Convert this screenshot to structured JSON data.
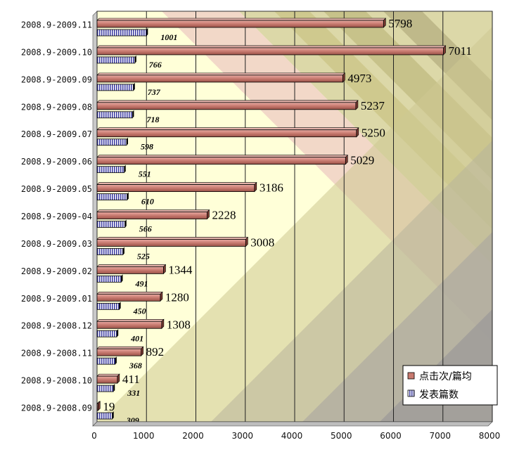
{
  "chart_data": {
    "type": "bar",
    "orientation": "horizontal",
    "categories": [
      "2008.9-2009.11",
      "2008.9-2009.10",
      "2008.9-2009.09",
      "2008.9-2009.08",
      "2008.9-2009.07",
      "2008.9-2009.06",
      "2008.9-2009.05",
      "2008.9-2009-04",
      "2008.9-2009.03",
      "2008.9-2009.02",
      "2008.9-2009.01",
      "2008.9-2008.12",
      "2008.9-2008.11",
      "2008.9-2008.10",
      "2008.9-2008.09"
    ],
    "series": [
      {
        "name": "点击次/篇均",
        "color": "#c87a70",
        "values": [
          5798,
          7011,
          4973,
          5237,
          5250,
          5029,
          3186,
          2228,
          3008,
          1344,
          1280,
          1308,
          892,
          411,
          19
        ]
      },
      {
        "name": "发表篇数",
        "color": "#3a3aa0",
        "values": [
          1001,
          766,
          737,
          718,
          598,
          551,
          610,
          566,
          525,
          491,
          450,
          401,
          368,
          331,
          309
        ]
      }
    ],
    "xlim": [
      0,
      8000
    ],
    "xticks": [
      "0",
      "1000",
      "2000",
      "3000",
      "4000",
      "5000",
      "6000",
      "7000",
      "8000"
    ],
    "grid": true,
    "legend_position": "bottom-right"
  }
}
